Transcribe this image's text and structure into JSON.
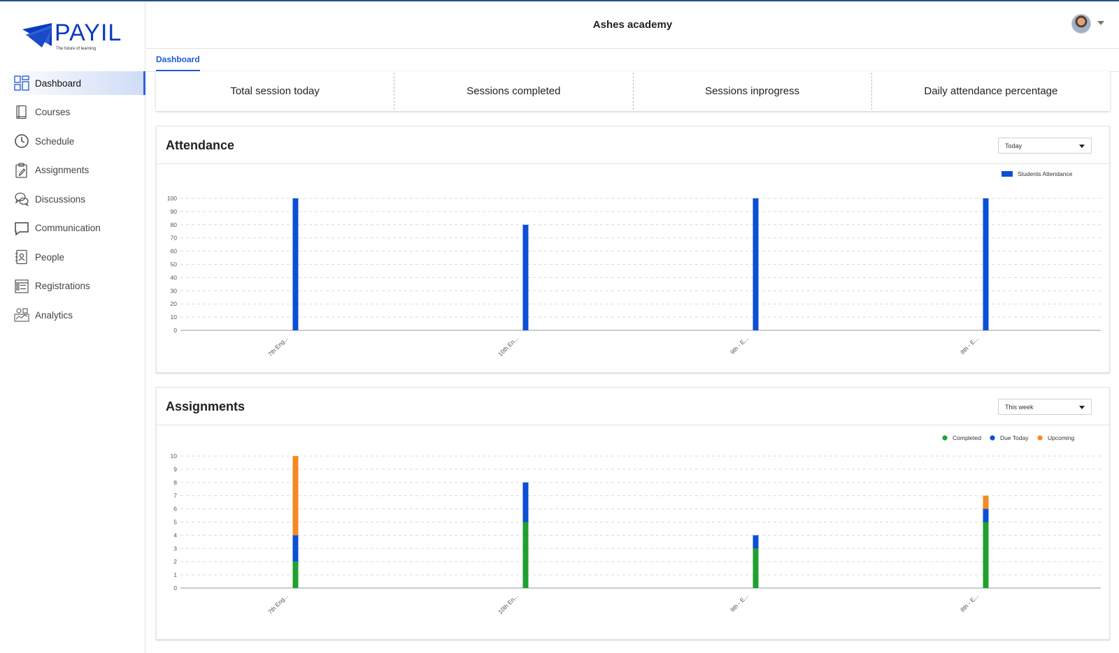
{
  "brand": {
    "name": "PAYIL",
    "tagline": "The future of learning",
    "color": "#0d3bbd"
  },
  "header": {
    "title": "Ashes academy",
    "avatar_icon": "user-avatar",
    "menu_icon": "caret-down-icon"
  },
  "sidebar": {
    "items": [
      {
        "label": "Dashboard",
        "icon": "dashboard-icon",
        "active": true
      },
      {
        "label": "Courses",
        "icon": "book-icon"
      },
      {
        "label": "Schedule",
        "icon": "clock-icon"
      },
      {
        "label": "Assignments",
        "icon": "clipboard-icon"
      },
      {
        "label": "Discussions",
        "icon": "chat-bubbles-icon"
      },
      {
        "label": "Communication",
        "icon": "message-icon"
      },
      {
        "label": "People",
        "icon": "contacts-icon"
      },
      {
        "label": "Registrations",
        "icon": "form-icon"
      },
      {
        "label": "Analytics",
        "icon": "analytics-icon"
      }
    ]
  },
  "tabs": [
    {
      "label": "Dashboard",
      "active": true
    }
  ],
  "stats": [
    {
      "label": "Total session today"
    },
    {
      "label": "Sessions completed"
    },
    {
      "label": "Sessions inprogress"
    },
    {
      "label": "Daily attendance percentage"
    }
  ],
  "attendance": {
    "title": "Attendance",
    "filter": {
      "selected": "Today"
    }
  },
  "assignments": {
    "title": "Assignments",
    "filter": {
      "selected": "This week"
    }
  },
  "chart_data": [
    {
      "type": "bar",
      "title": "Attendance",
      "categories": [
        "7th Eng...",
        "10th En...",
        "9th - E...",
        "8th - E..."
      ],
      "series": [
        {
          "name": "Students Attendance",
          "values": [
            100,
            80,
            100,
            100
          ],
          "color": "#0b4fd6"
        }
      ],
      "ylim": [
        0,
        100
      ],
      "yticks": [
        0,
        10,
        20,
        30,
        40,
        50,
        60,
        70,
        80,
        90,
        100
      ],
      "grid": true,
      "legend": "top-right"
    },
    {
      "type": "bar",
      "stacked": true,
      "title": "Assignments",
      "categories": [
        "7th Eng...",
        "10th En...",
        "9th - E...",
        "8th - E..."
      ],
      "series": [
        {
          "name": "Completed",
          "values": [
            2,
            5,
            3,
            5
          ],
          "color": "#1fa02f"
        },
        {
          "name": "Due Today",
          "values": [
            2,
            3,
            1,
            1
          ],
          "color": "#0b4fd6"
        },
        {
          "name": "Upcoming",
          "values": [
            6,
            0,
            0,
            1
          ],
          "color": "#f58a22"
        }
      ],
      "ylim": [
        0,
        10
      ],
      "yticks": [
        0,
        1,
        2,
        3,
        4,
        5,
        6,
        7,
        8,
        9,
        10
      ],
      "grid": true,
      "legend": "top-right"
    }
  ]
}
